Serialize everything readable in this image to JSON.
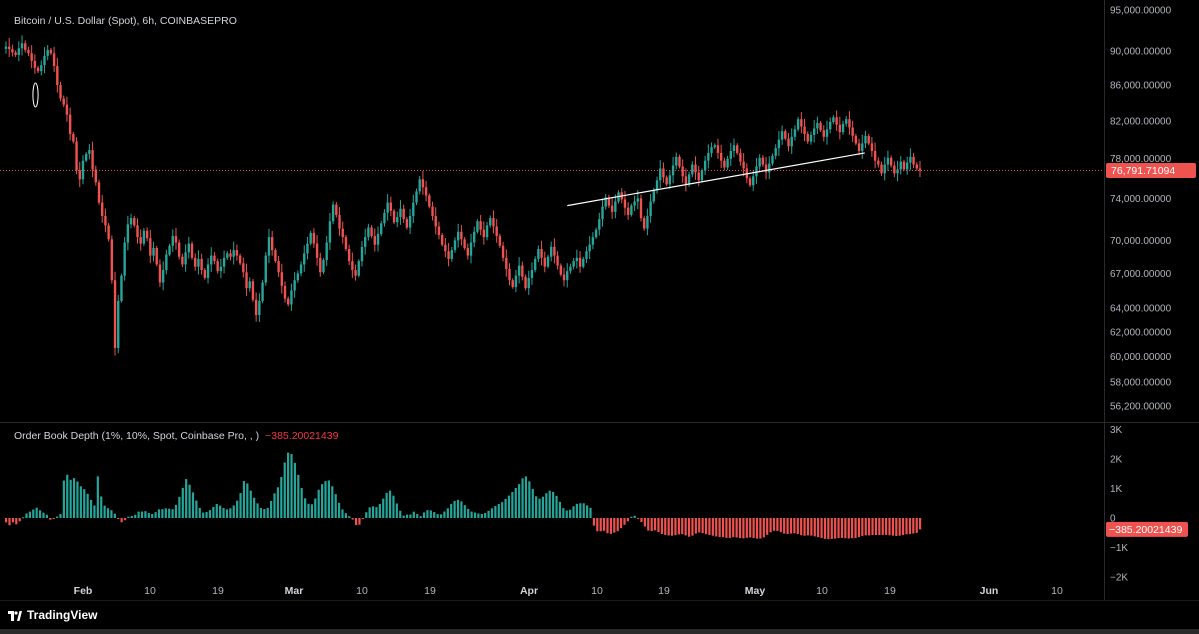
{
  "symbol_title": "Bitcoin / U.S. Dollar (Spot), 6h, COINBASEPRO",
  "indicator": {
    "title": "Order Book Depth (1%, 10%, Spot, Coinbase Pro, , )",
    "value": "−385.20021439"
  },
  "last_price_label": "76,791.71094",
  "brand": "TradingView",
  "colors": {
    "up": "#26a69a",
    "down": "#ef5350",
    "line": "#ffffff",
    "price_line": "#ef5350"
  },
  "chart_data": [
    {
      "type": "candlestick",
      "xlabels": [
        "Feb",
        "10",
        "19",
        "Mar",
        "10",
        "19",
        "Apr",
        "10",
        "19",
        "May",
        "10",
        "19",
        "Jun",
        "10"
      ],
      "price_scale": [
        "95,000.00000",
        "90,000.00000",
        "86,000.00000",
        "82,000.00000",
        "78,000.00000",
        "74,000.00000",
        "70,000.00000",
        "67,000.00000",
        "64,000.00000",
        "62,000.00000",
        "60,000.00000",
        "58,000.00000",
        "56,200.00000"
      ],
      "price_scale_values": [
        95000,
        90000,
        86000,
        82000,
        78000,
        74000,
        70000,
        67000,
        64000,
        62000,
        60000,
        58000,
        56200
      ],
      "log_scale": true,
      "last_price": 76791.71094,
      "trendline": [
        {
          "date": "2025-04-12",
          "price": 73300
        },
        {
          "date": "2025-05-25",
          "price": 78600
        }
      ],
      "closes": [
        90500,
        90200,
        89800,
        89500,
        90300,
        90900,
        90100,
        89700,
        88800,
        88000,
        87600,
        88300,
        89400,
        90100,
        89700,
        88200,
        86000,
        84500,
        83800,
        82700,
        80600,
        79800,
        76800,
        75900,
        77800,
        78500,
        78900,
        76900,
        75600,
        73600,
        72300,
        71400,
        70100,
        66400,
        60700,
        64600,
        66800,
        69800,
        71500,
        72100,
        71400,
        70300,
        69700,
        70900,
        70200,
        68600,
        69300,
        67800,
        66200,
        67300,
        68700,
        69500,
        70400,
        69800,
        68500,
        67800,
        68900,
        69700,
        68400,
        67600,
        68300,
        67300,
        66600,
        67800,
        68600,
        68100,
        67200,
        67600,
        68400,
        68800,
        68500,
        69100,
        68600,
        67900,
        67100,
        65700,
        66300,
        64700,
        63400,
        64600,
        66200,
        68600,
        70300,
        69100,
        68100,
        67100,
        65900,
        64800,
        64300,
        65500,
        66400,
        67000,
        67800,
        68800,
        69700,
        70700,
        69700,
        68400,
        67100,
        68200,
        69800,
        71800,
        73400,
        72400,
        71100,
        70300,
        69200,
        68100,
        67300,
        66800,
        68100,
        69400,
        70300,
        71200,
        70400,
        69600,
        70600,
        71600,
        72600,
        73600,
        72800,
        71700,
        72200,
        73000,
        72000,
        71200,
        72300,
        73600,
        74700,
        75900,
        75100,
        74300,
        73200,
        72300,
        71300,
        70500,
        69600,
        69000,
        68300,
        69100,
        70000,
        70800,
        70100,
        69300,
        68600,
        69800,
        70800,
        71800,
        71000,
        70300,
        71400,
        72100,
        71300,
        70400,
        69500,
        68400,
        67400,
        66400,
        65800,
        66800,
        67700,
        66700,
        65700,
        66600,
        67300,
        68300,
        69200,
        68400,
        67600,
        68500,
        69400,
        68600,
        67700,
        66900,
        66400,
        67200,
        67600,
        68100,
        68400,
        67600,
        68300,
        69000,
        69600,
        70300,
        71000,
        72000,
        73200,
        74100,
        73300,
        72700,
        73700,
        74600,
        73900,
        73100,
        72400,
        73300,
        73700,
        74000,
        72100,
        71100,
        72300,
        73700,
        74800,
        75800,
        77000,
        76100,
        75400,
        76300,
        77300,
        78200,
        77200,
        76200,
        75400,
        76400,
        77400,
        76600,
        75800,
        76800,
        77800,
        78600,
        79200,
        79400,
        78600,
        77800,
        77100,
        78000,
        78800,
        79400,
        78600,
        77700,
        77000,
        76000,
        75300,
        76200,
        77200,
        78100,
        77400,
        76600,
        77500,
        78300,
        79100,
        80000,
        80900,
        80100,
        79300,
        80300,
        81100,
        82200,
        81400,
        80600,
        79800,
        80500,
        81200,
        81800,
        81000,
        80300,
        81100,
        81900,
        82400,
        81600,
        80800,
        81700,
        82200,
        81300,
        80400,
        79600,
        78800,
        79600,
        80400,
        79600,
        78800,
        77800,
        77400,
        76500,
        77400,
        78100,
        77300,
        76500,
        76900,
        77700,
        76900,
        77600,
        78200,
        77400,
        77000,
        76800
      ]
    },
    {
      "type": "bar",
      "title": "Order Book Depth (1%, 10%, Spot, Coinbase Pro, , )",
      "scale_labels": [
        "3K",
        "2K",
        "1K",
        "0",
        "−1K",
        "−2K"
      ],
      "scale_values": [
        3000,
        2000,
        1000,
        0,
        -1000,
        -2000
      ],
      "last_value": -385.20021439,
      "values": [
        -149,
        -247,
        -149,
        -213,
        -111,
        26,
        154,
        216,
        287,
        350,
        262,
        182,
        110,
        -59,
        -16,
        48,
        132,
        1270,
        1465,
        1294,
        1351,
        1235,
        1074,
        977,
        821,
        614,
        425,
        1412,
        731,
        420,
        332,
        265,
        147,
        -14,
        -145,
        -75,
        45,
        71,
        107,
        216,
        218,
        232,
        173,
        137,
        199,
        294,
        299,
        326,
        316,
        297,
        446,
        716,
        1019,
        1320,
        1128,
        868,
        592,
        342,
        185,
        202,
        265,
        376,
        474,
        420,
        339,
        293,
        329,
        426,
        588,
        843,
        1255,
        1172,
        928,
        687,
        495,
        341,
        304,
        342,
        578,
        834,
        1040,
        1390,
        1882,
        2216,
        2168,
        1870,
        1461,
        1017,
        666,
        482,
        465,
        660,
        957,
        1147,
        1250,
        1274,
        1076,
        809,
        513,
        289,
        162,
        60,
        -52,
        -239,
        -227,
        -33,
        195,
        360,
        394,
        368,
        478,
        657,
        852,
        928,
        758,
        491,
        246,
        81,
        117,
        119,
        215,
        133,
        62,
        190,
        265,
        256,
        201,
        133,
        125,
        221,
        329,
        478,
        577,
        615,
        562,
        436,
        308,
        219,
        187,
        154,
        139,
        170,
        244,
        328,
        405,
        474,
        539,
        647,
        759,
        880,
        1016,
        1149,
        1344,
        1410,
        1243,
        986,
        737,
        657,
        722,
        841,
        926,
        880,
        749,
        548,
        335,
        255,
        279,
        398,
        479,
        500,
        499,
        429,
        343,
        -258,
        -450,
        -451,
        -435,
        -518,
        -537,
        -497,
        -447,
        -344,
        -231,
        -110,
        44,
        75,
        -21,
        -137,
        -289,
        -426,
        -442,
        -419,
        -475,
        -541,
        -573,
        -592,
        -601,
        -582,
        -557,
        -545,
        -590,
        -636,
        -599,
        -530,
        -491,
        -514,
        -549,
        -575,
        -600,
        -625,
        -644,
        -649,
        -673,
        -677,
        -650,
        -661,
        -683,
        -691,
        -671,
        -658,
        -681,
        -700,
        -697,
        -658,
        -571,
        -484,
        -434,
        -436,
        -480,
        -529,
        -542,
        -528,
        -519,
        -545,
        -582,
        -599,
        -589,
        -597,
        -624,
        -651,
        -679,
        -708,
        -716,
        -709,
        -697,
        -677,
        -676,
        -686,
        -697,
        -686,
        -680,
        -647,
        -607,
        -589,
        -591,
        -578,
        -575,
        -576,
        -575,
        -574,
        -585,
        -600,
        -611,
        -600,
        -578,
        -552,
        -548,
        -526,
        -503,
        -385
      ]
    }
  ]
}
